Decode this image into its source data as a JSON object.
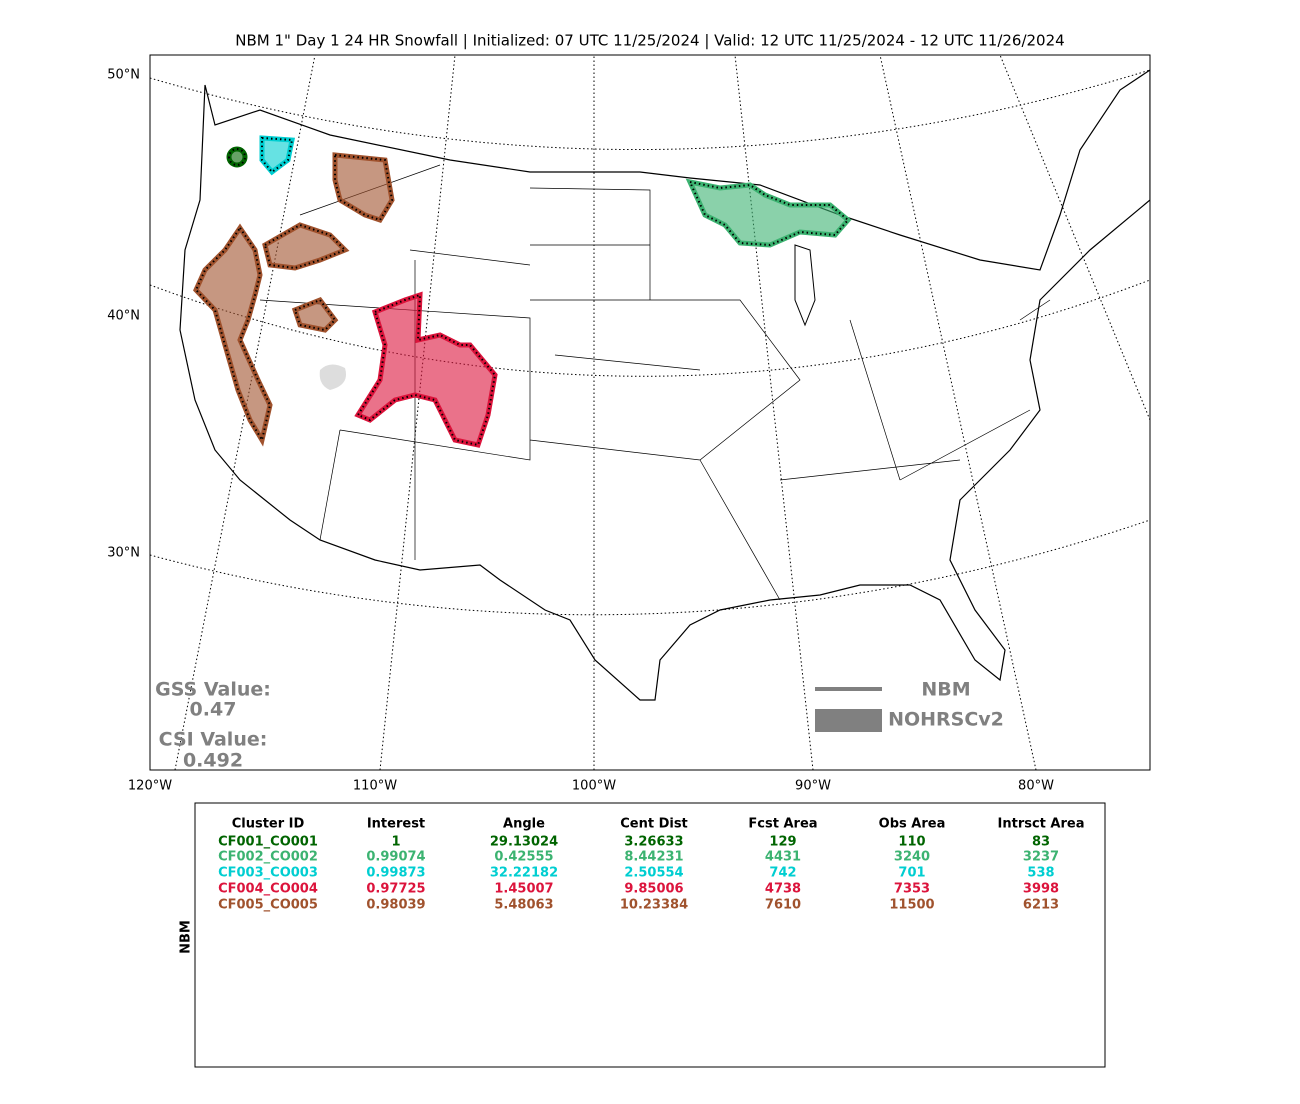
{
  "title": "NBM 1\" Day 1 24 HR Snowfall | Initialized: 07 UTC 11/25/2024 | Valid: 12 UTC 11/25/2024 - 12 UTC 11/26/2024",
  "map": {
    "lat_labels": [
      "50°N",
      "40°N",
      "30°N"
    ],
    "lon_labels": [
      "120°W",
      "110°W",
      "100°W",
      "90°W",
      "80°W"
    ]
  },
  "scores": {
    "gss_label": "GSS Value:",
    "gss_value": "0.47",
    "csi_label": "CSI Value:",
    "csi_value": "0.492"
  },
  "legend": {
    "forecast": "NBM",
    "observed": "NOHRSCv2"
  },
  "table": {
    "side_label": "NBM",
    "headers": [
      "Cluster ID",
      "Interest",
      "Angle",
      "Cent Dist",
      "Fcst Area",
      "Obs Area",
      "Intrsct Area"
    ],
    "rows": [
      {
        "color": "#006400",
        "cells": [
          "CF001_CO001",
          "1",
          "29.13024",
          "3.26633",
          "129",
          "110",
          "83"
        ]
      },
      {
        "color": "#3cb371",
        "cells": [
          "CF002_CO002",
          "0.99074",
          "0.42555",
          "8.44231",
          "4431",
          "3240",
          "3237"
        ]
      },
      {
        "color": "#00ced1",
        "cells": [
          "CF003_CO003",
          "0.99873",
          "32.22182",
          "2.50554",
          "742",
          "701",
          "538"
        ]
      },
      {
        "color": "#dc143c",
        "cells": [
          "CF004_CO004",
          "0.97725",
          "1.45007",
          "9.85006",
          "4738",
          "7353",
          "3998"
        ]
      },
      {
        "color": "#a0522d",
        "cells": [
          "CF005_CO005",
          "0.98039",
          "5.48063",
          "10.23384",
          "7610",
          "11500",
          "6213"
        ]
      }
    ]
  }
}
